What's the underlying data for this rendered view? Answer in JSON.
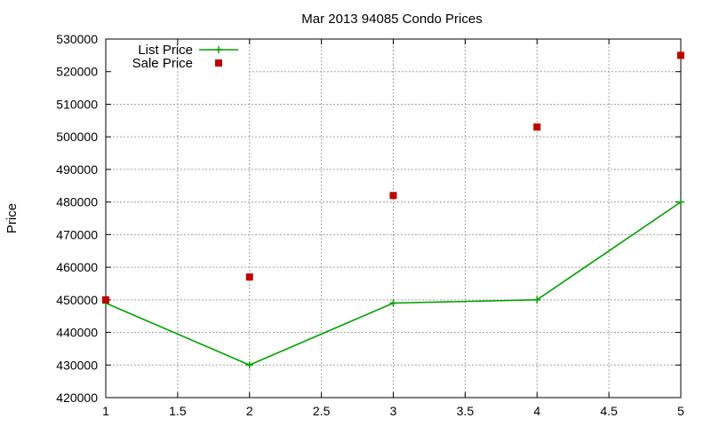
{
  "chart_data": {
    "type": "line",
    "title": "Mar 2013 94085 Condo Prices",
    "xlabel": "",
    "ylabel": "Price",
    "xlim": [
      1,
      5
    ],
    "ylim": [
      420000,
      530000
    ],
    "xticks": [
      "1",
      "1.5",
      "2",
      "2.5",
      "3",
      "3.5",
      "4",
      "4.5",
      "5"
    ],
    "yticks": [
      "420000",
      "430000",
      "440000",
      "450000",
      "460000",
      "470000",
      "480000",
      "490000",
      "500000",
      "510000",
      "520000",
      "530000"
    ],
    "grid": true,
    "legend_position": "top-left",
    "series": [
      {
        "name": "List Price",
        "style": "line-with-plus-markers",
        "color": "#00a000",
        "x": [
          1,
          2,
          3,
          4,
          5
        ],
        "y": [
          449000,
          430000,
          449000,
          450000,
          480000
        ]
      },
      {
        "name": "Sale Price",
        "style": "square-points",
        "color": "#c00000",
        "x": [
          1,
          2,
          3,
          4,
          5
        ],
        "y": [
          450000,
          457000,
          482000,
          503000,
          525000
        ]
      }
    ]
  }
}
